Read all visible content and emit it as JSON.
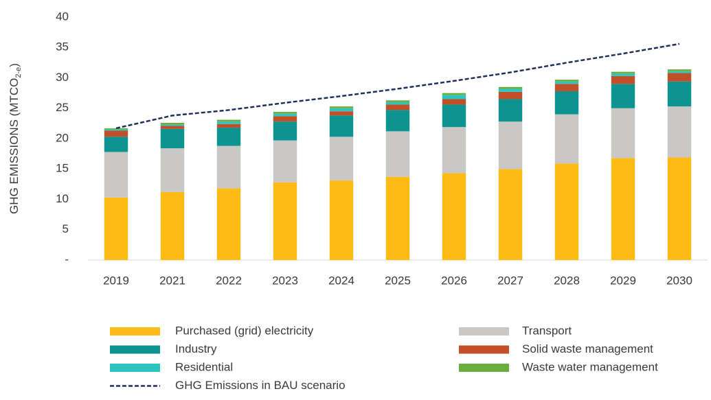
{
  "chart_data": {
    "type": "bar",
    "stacked": true,
    "ylabel": {
      "text": "GHG EMISSIONS (MTCO",
      "sub": "2-e",
      "end": ")"
    },
    "categories": [
      "2019",
      "2021",
      "2022",
      "2023",
      "2024",
      "2025",
      "2026",
      "2027",
      "2028",
      "2029",
      "2030"
    ],
    "ylim": [
      0,
      40
    ],
    "yticks": [
      {
        "value": 0,
        "label": "-"
      },
      5,
      10,
      15,
      20,
      25,
      30,
      35,
      40
    ],
    "series": [
      {
        "name": "Purchased (grid) electricity",
        "color": "#FDBB13",
        "values": [
          10.3,
          11.2,
          11.8,
          12.8,
          13.1,
          13.7,
          14.3,
          15.0,
          15.9,
          16.8,
          16.9
        ]
      },
      {
        "name": "Transport",
        "color": "#C9C8C7",
        "values": [
          7.5,
          7.2,
          7.0,
          6.9,
          7.2,
          7.5,
          7.6,
          7.8,
          8.1,
          8.2,
          8.4
        ]
      },
      {
        "name": "Industry",
        "color": "#0D9490",
        "values": [
          2.5,
          3.2,
          3.0,
          3.1,
          3.5,
          3.5,
          3.7,
          3.7,
          3.8,
          4.0,
          4.1
        ]
      },
      {
        "name": "Solid waste management",
        "color": "#C0502A",
        "values": [
          1.0,
          0.5,
          0.6,
          0.9,
          0.7,
          0.9,
          0.9,
          1.2,
          1.2,
          1.3,
          1.4
        ]
      },
      {
        "name": "Residential",
        "color": "#2EC4C0",
        "values": [
          0.2,
          0.2,
          0.4,
          0.4,
          0.5,
          0.4,
          0.7,
          0.5,
          0.4,
          0.4,
          0.3
        ]
      },
      {
        "name": "Waste water management",
        "color": "#6AAE3F",
        "values": [
          0.2,
          0.3,
          0.3,
          0.3,
          0.3,
          0.3,
          0.3,
          0.3,
          0.3,
          0.3,
          0.3
        ]
      },
      {
        "name": "GHG Emissions in BAU scenario",
        "type": "line",
        "dashed": true,
        "color": "#1F2F5E",
        "values": [
          21.7,
          23.8,
          24.7,
          25.9,
          27.0,
          28.2,
          29.5,
          30.9,
          32.5,
          34.0,
          35.6
        ]
      }
    ]
  }
}
